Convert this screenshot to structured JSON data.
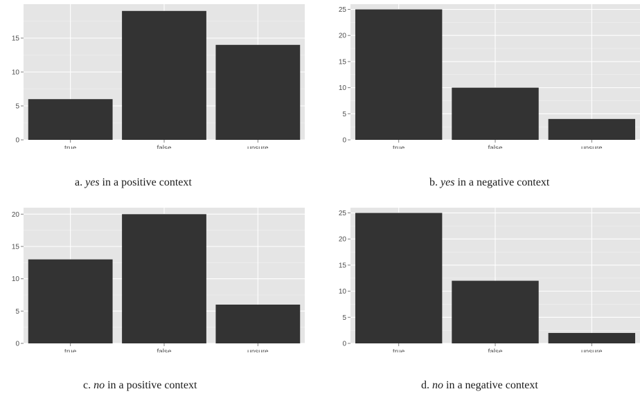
{
  "chart_data": [
    {
      "id": "a",
      "type": "bar",
      "categories": [
        "true",
        "false",
        "unsure"
      ],
      "values": [
        6,
        19,
        14
      ],
      "ylim": [
        0,
        20
      ],
      "yticks": [
        0,
        5,
        10,
        15
      ],
      "grid": true,
      "title": "",
      "caption": {
        "prefix": "a. ",
        "emph": "yes",
        "suffix": " in a positive context"
      }
    },
    {
      "id": "b",
      "type": "bar",
      "categories": [
        "true",
        "false",
        "unsure"
      ],
      "values": [
        25,
        10,
        4
      ],
      "ylim": [
        0,
        26
      ],
      "yticks": [
        0,
        5,
        10,
        15,
        20,
        25
      ],
      "grid": true,
      "title": "",
      "caption": {
        "prefix": "b. ",
        "emph": "yes",
        "suffix": " in a negative context"
      }
    },
    {
      "id": "c",
      "type": "bar",
      "categories": [
        "true",
        "false",
        "unsure"
      ],
      "values": [
        13,
        20,
        6
      ],
      "ylim": [
        0,
        21
      ],
      "yticks": [
        0,
        5,
        10,
        15,
        20
      ],
      "grid": true,
      "title": "",
      "caption": {
        "prefix": "c. ",
        "emph": "no",
        "suffix": " in a positive context"
      }
    },
    {
      "id": "d",
      "type": "bar",
      "categories": [
        "true",
        "false",
        "unsure"
      ],
      "values": [
        25,
        12,
        2
      ],
      "ylim": [
        0,
        26
      ],
      "yticks": [
        0,
        5,
        10,
        15,
        20,
        25
      ],
      "grid": true,
      "title": "",
      "caption": {
        "prefix": "d. ",
        "emph": "no",
        "suffix": " in a negative context"
      }
    }
  ],
  "colors": {
    "panel_background": "#e5e5e5",
    "bar_fill": "#333333"
  }
}
